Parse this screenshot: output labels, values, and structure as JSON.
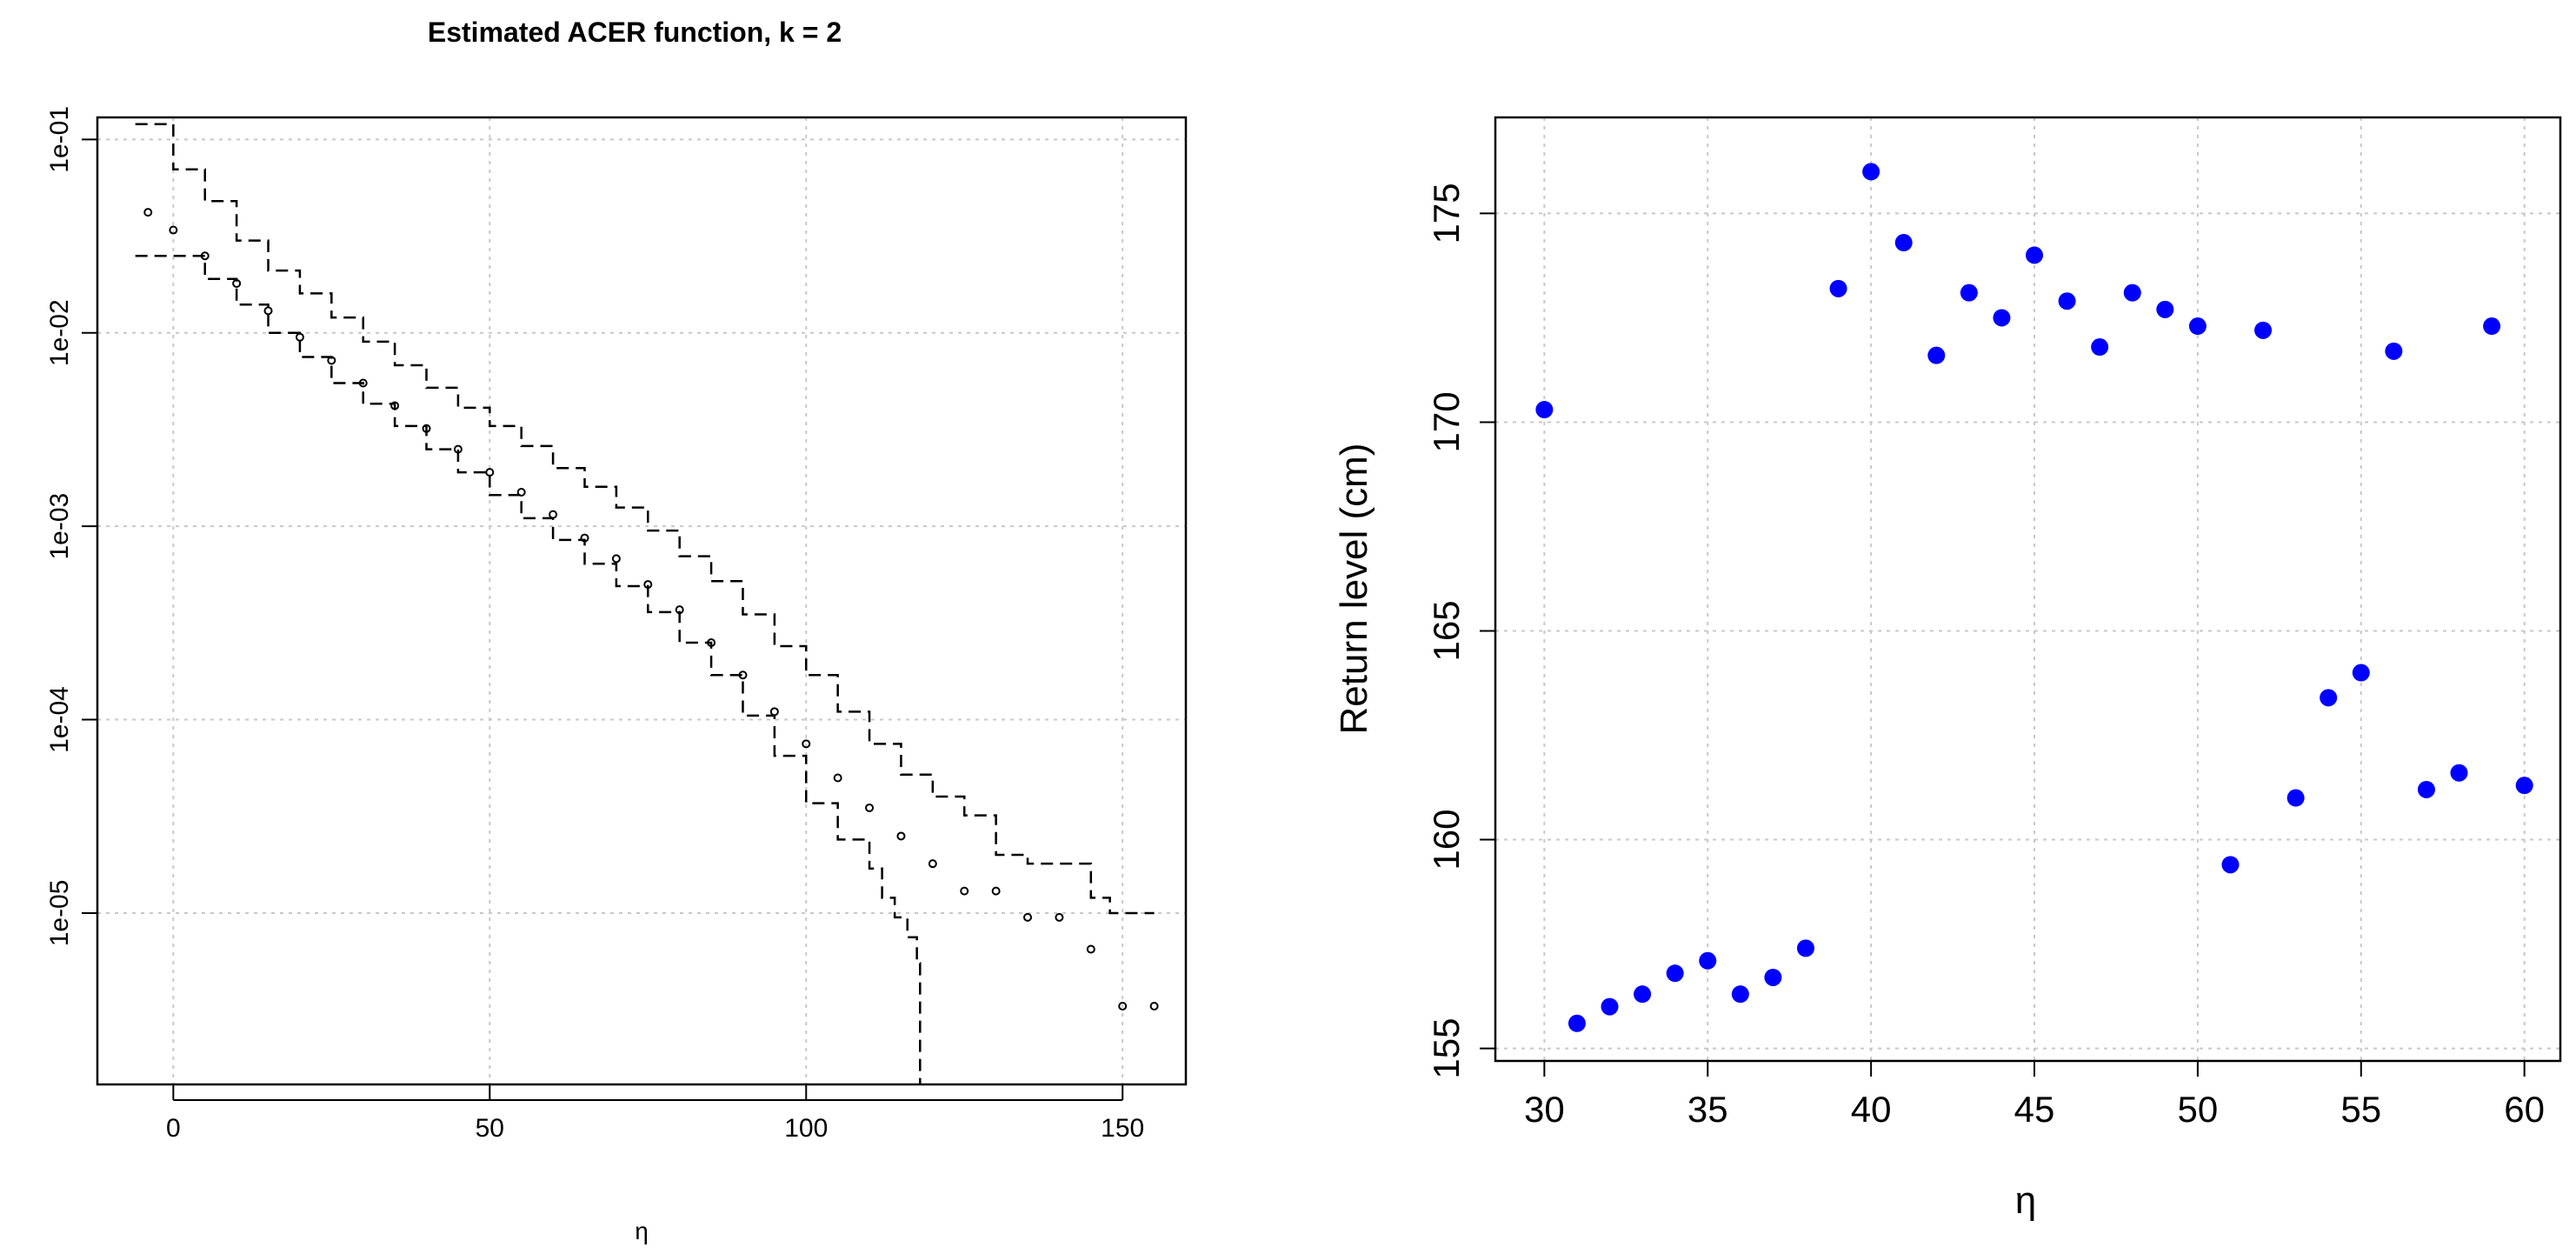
{
  "chart_data": [
    {
      "type": "scatter",
      "title": "Estimated ACER function, k = 2",
      "xlabel": "η",
      "ylabel": "",
      "xlim": [
        -12,
        160
      ],
      "ylim": [
        1.3e-06,
        0.13
      ],
      "log_y": true,
      "grid": true,
      "x_ticks": [
        0,
        50,
        100,
        150
      ],
      "x_tick_labels": [
        "0",
        "50",
        "100",
        "150"
      ],
      "y_ticks": [
        0.1,
        0.01,
        0.001,
        0.0001,
        1e-05
      ],
      "y_tick_labels": [
        "1e-01",
        "1e-02",
        "1e-03",
        "1e-04",
        "1e-05"
      ],
      "series": [
        {
          "role": "estimate",
          "style": "points",
          "x": [
            -4,
            0,
            5,
            10,
            15,
            20,
            25,
            30,
            35,
            40,
            45,
            50,
            55,
            60,
            65,
            70,
            75,
            80,
            85,
            90,
            95,
            100,
            105,
            110,
            115,
            120,
            125,
            130,
            135,
            140,
            145,
            150,
            155
          ],
          "y": [
            0.042,
            0.034,
            0.025,
            0.018,
            0.013,
            0.0095,
            0.0072,
            0.0055,
            0.0042,
            0.0032,
            0.0025,
            0.0019,
            0.0015,
            0.00115,
            0.00087,
            0.00068,
            0.0005,
            0.00037,
            0.00025,
            0.00017,
            0.00011,
            7.5e-05,
            5e-05,
            3.5e-05,
            2.5e-05,
            1.8e-05,
            1.3e-05,
            1.3e-05,
            9.5e-06,
            9.5e-06,
            6.5e-06,
            3.3e-06,
            3.3e-06
          ]
        },
        {
          "role": "upper-confidence-band",
          "style": "dashed",
          "x": [
            -6,
            0,
            5,
            10,
            15,
            20,
            25,
            30,
            35,
            40,
            45,
            50,
            55,
            60,
            65,
            70,
            75,
            80,
            85,
            90,
            95,
            100,
            105,
            110,
            115,
            120,
            125,
            130,
            135,
            140,
            145,
            148,
            155
          ],
          "y": [
            0.12,
            0.07,
            0.048,
            0.03,
            0.021,
            0.016,
            0.012,
            0.009,
            0.0068,
            0.0052,
            0.0041,
            0.0033,
            0.0026,
            0.002,
            0.0016,
            0.00125,
            0.00095,
            0.0007,
            0.00052,
            0.00035,
            0.00024,
            0.00017,
            0.00011,
            7.5e-05,
            5.2e-05,
            4e-05,
            3.2e-05,
            2e-05,
            1.8e-05,
            1.8e-05,
            1.2e-05,
            1e-05,
            1e-05
          ]
        },
        {
          "role": "lower-confidence-band",
          "style": "dashed",
          "x": [
            -6,
            0,
            5,
            10,
            15,
            20,
            25,
            30,
            35,
            40,
            45,
            50,
            55,
            60,
            65,
            70,
            75,
            80,
            85,
            90,
            95,
            100,
            105,
            110,
            112,
            114,
            116,
            117.5,
            118
          ],
          "y": [
            0.025,
            0.025,
            0.019,
            0.014,
            0.01,
            0.0075,
            0.0055,
            0.0043,
            0.0033,
            0.0025,
            0.0019,
            0.00145,
            0.0011,
            0.00085,
            0.00064,
            0.00049,
            0.00036,
            0.00025,
            0.00017,
            0.000105,
            6.5e-05,
            3.7e-05,
            2.4e-05,
            1.7e-05,
            1.2e-05,
            9.5e-06,
            7.5e-06,
            5.5e-06,
            1.3e-06
          ]
        }
      ]
    },
    {
      "type": "scatter",
      "title": "",
      "xlabel": "η",
      "ylabel": "Return level (cm)",
      "xlim": [
        28.5,
        61.1
      ],
      "ylim": [
        154.7,
        177.3
      ],
      "grid": true,
      "x_ticks": [
        30,
        35,
        40,
        45,
        50,
        55,
        60
      ],
      "x_tick_labels": [
        "30",
        "35",
        "40",
        "45",
        "50",
        "55",
        "60"
      ],
      "y_ticks": [
        155,
        160,
        165,
        170,
        175
      ],
      "y_tick_labels": [
        "155",
        "160",
        "165",
        "170",
        "175"
      ],
      "color": "#0000ff",
      "x": [
        30,
        31,
        32,
        33,
        34,
        35,
        36,
        37,
        38,
        39,
        40,
        41,
        42,
        43,
        44,
        45,
        46,
        47,
        48,
        49,
        50,
        51,
        52,
        53,
        54,
        55,
        56,
        57,
        58,
        59,
        60
      ],
      "y": [
        170.3,
        155.6,
        156.0,
        156.3,
        156.8,
        157.1,
        156.3,
        156.7,
        157.4,
        173.2,
        176.0,
        174.3,
        171.6,
        173.1,
        172.5,
        174.0,
        172.9,
        171.8,
        173.1,
        172.7,
        172.3,
        159.4,
        172.2,
        161.0,
        163.4,
        164.0,
        171.7,
        161.2,
        161.6,
        172.3,
        161.3
      ]
    }
  ]
}
